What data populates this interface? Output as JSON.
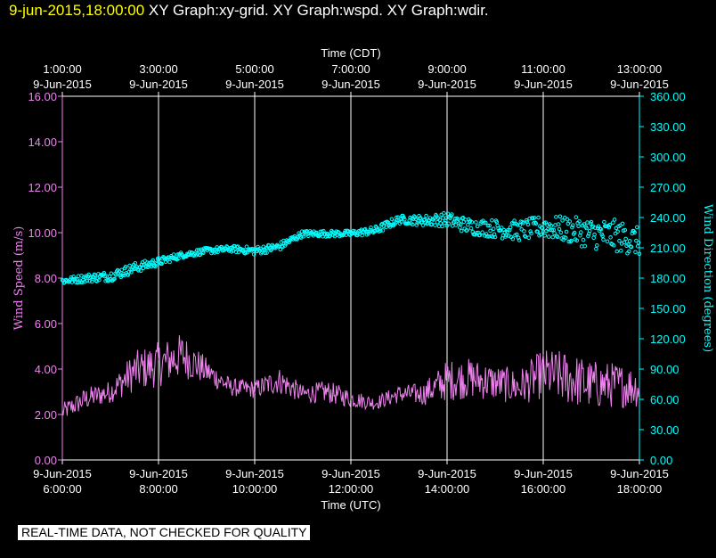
{
  "header": {
    "timestamp": "9-jun-2015,18:00:00",
    "titles": "XY Graph:xy-grid.  XY Graph:wspd.  XY Graph:wdir."
  },
  "footer_note": "REAL-TIME DATA, NOT CHECKED FOR QUALITY",
  "colors": {
    "speed": "#ee82ee",
    "direction": "#00ffff",
    "grid": "#ffffff",
    "axis": "#ffffff"
  },
  "chart_data": {
    "type": "scatter",
    "top_axis": {
      "title": "Time (CDT)",
      "ticks": [
        {
          "line1": "1:00:00",
          "line2": "9-Jun-2015"
        },
        {
          "line1": "3:00:00",
          "line2": "9-Jun-2015"
        },
        {
          "line1": "5:00:00",
          "line2": "9-Jun-2015"
        },
        {
          "line1": "7:00:00",
          "line2": "9-Jun-2015"
        },
        {
          "line1": "9:00:00",
          "line2": "9-Jun-2015"
        },
        {
          "line1": "11:00:00",
          "line2": "9-Jun-2015"
        },
        {
          "line1": "13:00:00",
          "line2": "9-Jun-2015"
        }
      ]
    },
    "bottom_axis": {
      "title": "Time (UTC)",
      "ticks": [
        {
          "line1": "9-Jun-2015",
          "line2": "6:00:00"
        },
        {
          "line1": "9-Jun-2015",
          "line2": "8:00:00"
        },
        {
          "line1": "9-Jun-2015",
          "line2": "10:00:00"
        },
        {
          "line1": "9-Jun-2015",
          "line2": "12:00:00"
        },
        {
          "line1": "9-Jun-2015",
          "line2": "14:00:00"
        },
        {
          "line1": "9-Jun-2015",
          "line2": "16:00:00"
        },
        {
          "line1": "9-Jun-2015",
          "line2": "18:00:00"
        }
      ]
    },
    "x_range_utc_hours": [
      6,
      18
    ],
    "left_axis": {
      "title": "Wind Speed (m/s)",
      "range": [
        0,
        16
      ],
      "ticks": [
        "0.00",
        "2.00",
        "4.00",
        "6.00",
        "8.00",
        "10.00",
        "12.00",
        "14.00",
        "16.00"
      ]
    },
    "right_axis": {
      "title": "Wind Direction (degrees)",
      "range": [
        0,
        360
      ],
      "ticks": [
        "0.00",
        "30.00",
        "60.00",
        "90.00",
        "120.00",
        "150.00",
        "180.00",
        "210.00",
        "240.00",
        "270.00",
        "300.00",
        "330.00",
        "360.00"
      ]
    },
    "grid": true,
    "series": [
      {
        "name": "wspd",
        "render": "line",
        "hour_utc": [
          6.0,
          6.5,
          7.0,
          7.5,
          8.0,
          8.5,
          9.0,
          9.5,
          10.0,
          10.5,
          11.0,
          11.5,
          12.0,
          12.5,
          13.0,
          13.5,
          14.0,
          14.5,
          15.0,
          15.5,
          16.0,
          16.5,
          17.0,
          17.5,
          18.0
        ],
        "speed_ms": [
          2.1,
          2.7,
          3.0,
          3.9,
          4.2,
          4.6,
          3.9,
          3.2,
          3.1,
          3.5,
          2.9,
          3.0,
          2.7,
          2.5,
          2.9,
          2.9,
          3.5,
          3.6,
          3.4,
          3.2,
          3.8,
          3.6,
          3.3,
          3.3,
          3.2
        ],
        "spread_ms": [
          0.4,
          0.5,
          0.5,
          0.9,
          1.0,
          1.0,
          0.6,
          0.4,
          0.4,
          0.6,
          0.4,
          0.5,
          0.4,
          0.3,
          0.4,
          0.5,
          0.9,
          0.9,
          0.8,
          0.8,
          1.1,
          1.2,
          1.1,
          1.0,
          0.9
        ]
      },
      {
        "name": "wdir",
        "render": "dots",
        "hour_utc": [
          6.0,
          6.5,
          7.0,
          7.5,
          8.0,
          8.5,
          9.0,
          9.5,
          10.0,
          10.5,
          11.0,
          11.5,
          12.0,
          12.5,
          13.0,
          13.5,
          14.0,
          14.5,
          15.0,
          15.5,
          16.0,
          16.5,
          17.0,
          17.5,
          18.0
        ],
        "direction_deg": [
          177,
          180,
          182,
          190,
          196,
          203,
          207,
          209,
          207,
          211,
          224,
          224,
          224,
          227,
          238,
          237,
          238,
          231,
          229,
          227,
          231,
          228,
          224,
          222,
          216
        ],
        "spread_deg": [
          3,
          4,
          5,
          5,
          4,
          3,
          3,
          3,
          4,
          4,
          3,
          3,
          3,
          4,
          4,
          5,
          7,
          8,
          9,
          10,
          11,
          13,
          15,
          16,
          14
        ]
      }
    ]
  }
}
